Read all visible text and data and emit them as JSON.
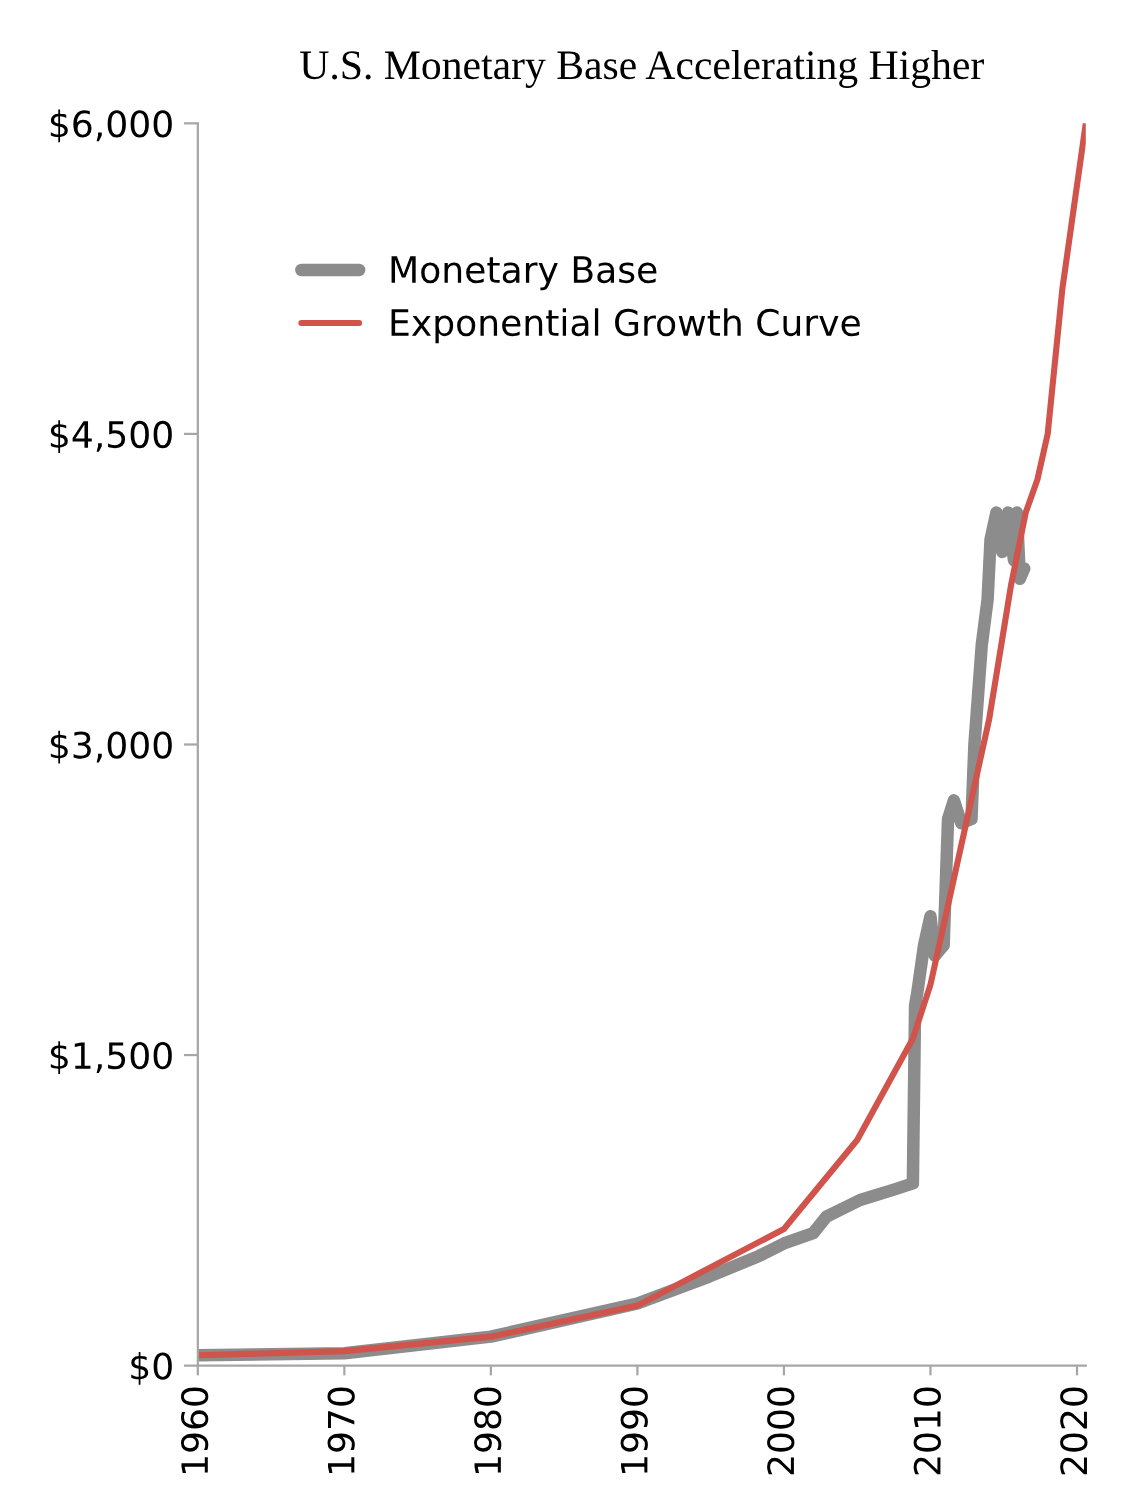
{
  "chart_data": {
    "type": "line",
    "title": "U.S. Monetary Base Accelerating Higher",
    "series": [
      {
        "name": "Monetary Base",
        "color": "#8c8c8c",
        "x": [
          1960,
          1970,
          1980,
          1990,
          1994.9,
          1998.3,
          2000,
          2002.0,
          2002.9,
          2005.2,
          2007.5,
          2008.8,
          2008.95,
          2009.1,
          2009.56,
          2010.0,
          2010.3,
          2010.9,
          2011.2,
          2011.6,
          2012.1,
          2012.8,
          2013.0,
          2013.5,
          2013.9,
          2014.1,
          2014.5,
          2014.9,
          2015.3,
          2015.7,
          2015.9,
          2016.1,
          2016.4
        ],
        "values": [
          50,
          60,
          140,
          300,
          430,
          530,
          590,
          640,
          720,
          800,
          850,
          880,
          1740,
          1800,
          2030,
          2170,
          1980,
          2030,
          2640,
          2730,
          2620,
          2640,
          3000,
          3480,
          3700,
          3990,
          4120,
          3930,
          4120,
          3890,
          4120,
          3800,
          3850
        ]
      },
      {
        "name": "Exponential Growth Curve",
        "color": "#d0534c",
        "x": [
          1960,
          1970,
          1980,
          1990,
          2000,
          2005,
          2008.8,
          2010,
          2012,
          2014,
          2015.5,
          2016.5,
          2017.3,
          2018.0,
          2019.0,
          2020.6
        ],
        "values": [
          50,
          70,
          140,
          290,
          660,
          1090,
          1580,
          1840,
          2480,
          3120,
          3770,
          4120,
          4280,
          4500,
          5200,
          6000
        ]
      }
    ],
    "xlim": [
      1960,
      2020.6
    ],
    "xticks": [
      1960,
      1970,
      1980,
      1990,
      2000,
      2010,
      2020
    ],
    "ylim": [
      0,
      6000
    ],
    "yticks": [
      {
        "value": 0,
        "label": "$0"
      },
      {
        "value": 1500,
        "label": "$1,500"
      },
      {
        "value": 3000,
        "label": "$3,000"
      },
      {
        "value": 4500,
        "label": "$4,500"
      },
      {
        "value": 6000,
        "label": "$6,000"
      }
    ],
    "legend": "top left",
    "grid": false
  }
}
